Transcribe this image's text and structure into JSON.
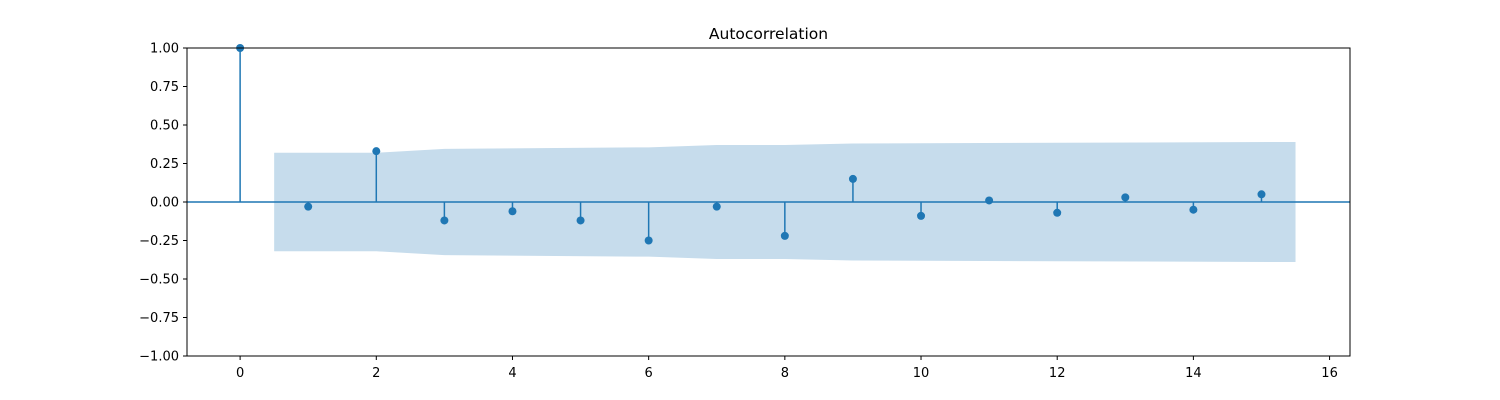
{
  "chart_data": {
    "type": "stem",
    "title": "Autocorrelation",
    "xlabel": "",
    "ylabel": "",
    "xlim": [
      -0.78,
      16.3
    ],
    "ylim": [
      -1.0,
      1.0
    ],
    "x_ticks": [
      0,
      2,
      4,
      6,
      8,
      10,
      12,
      14,
      16
    ],
    "y_ticks": [
      1.0,
      0.75,
      0.5,
      0.25,
      0.0,
      -0.25,
      -0.5,
      -0.75,
      -1.0
    ],
    "y_tick_labels": [
      "1.00",
      "0.75",
      "0.50",
      "0.25",
      "0.00",
      "−0.25",
      "−0.50",
      "−0.75",
      "−1.00"
    ],
    "lags": [
      0,
      1,
      2,
      3,
      4,
      5,
      6,
      7,
      8,
      9,
      10,
      11,
      12,
      13,
      14,
      15
    ],
    "values": [
      1.0,
      -0.03,
      0.33,
      -0.12,
      -0.06,
      -0.12,
      -0.25,
      -0.03,
      -0.22,
      0.15,
      -0.09,
      0.01,
      -0.07,
      0.03,
      -0.05,
      0.05
    ],
    "confidence_band": {
      "lags": [
        0.5,
        2.0,
        3.0,
        6.0,
        7.0,
        8.0,
        9.0,
        15.5
      ],
      "upper": [
        0.32,
        0.32,
        0.345,
        0.355,
        0.37,
        0.37,
        0.38,
        0.39
      ],
      "lower": [
        -0.32,
        -0.32,
        -0.345,
        -0.355,
        -0.37,
        -0.37,
        -0.38,
        -0.39
      ]
    },
    "colors": {
      "stem": "#1f77b4",
      "band": "#c6dcec",
      "zero_line": "#1f77b4",
      "axes": "#000000"
    }
  }
}
